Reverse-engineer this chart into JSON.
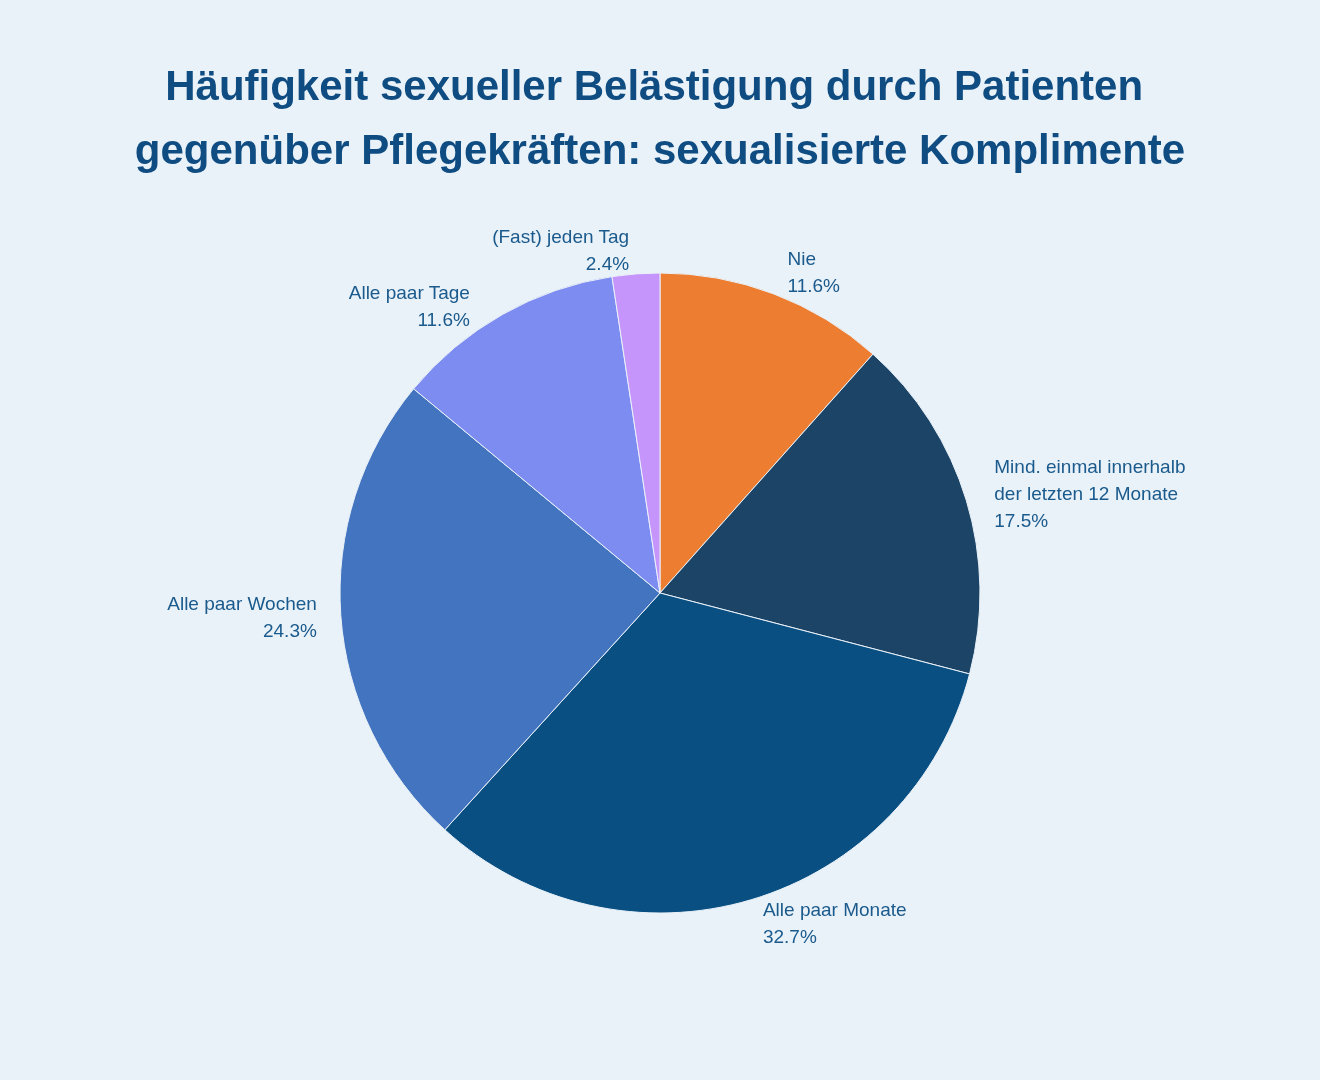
{
  "chart_data": {
    "type": "pie",
    "title": "Häufigkeit sexueller Belästigung durch Patienten gegenüber Pflegekräften: sexualisierte Komplimente",
    "categories": [
      "Nie",
      "Mind. einmal innerhalb der letzten 12 Monate",
      "Alle paar Monate",
      "Alle paar Wochen",
      "Alle paar Tage",
      "(Fast) jeden Tag"
    ],
    "values": [
      11.6,
      17.5,
      32.7,
      24.3,
      11.6,
      2.4
    ],
    "value_labels": [
      "11.6%",
      "17.5%",
      "32.7%",
      "24.3%",
      "11.6%",
      "2.4%"
    ],
    "colors": [
      "#ed7d31",
      "#1c4466",
      "#0a4f82",
      "#4374c0",
      "#7d8cf0",
      "#c595fb"
    ],
    "legend": false
  }
}
